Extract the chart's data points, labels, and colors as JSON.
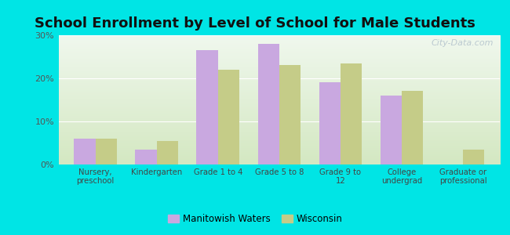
{
  "title": "School Enrollment by Level of School for Male Students",
  "categories": [
    "Nursery,\npreschool",
    "Kindergarten",
    "Grade 1 to 4",
    "Grade 5 to 8",
    "Grade 9 to\n12",
    "College\nundergrad",
    "Graduate or\nprofessional"
  ],
  "manitowish_values": [
    6.0,
    3.5,
    26.5,
    28.0,
    19.0,
    16.0,
    0.0
  ],
  "wisconsin_values": [
    6.0,
    5.5,
    22.0,
    23.0,
    23.5,
    17.0,
    3.5
  ],
  "manitowish_color": "#c9a8e0",
  "wisconsin_color": "#c5cc88",
  "background_outer": "#00e5e5",
  "background_inner_bottom": "#d4e8c2",
  "background_inner_top": "#f0f8ee",
  "ylim": [
    0,
    30
  ],
  "yticks": [
    0,
    10,
    20,
    30
  ],
  "ytick_labels": [
    "0%",
    "10%",
    "20%",
    "30%"
  ],
  "title_fontsize": 13,
  "legend_label_1": "Manitowish Waters",
  "legend_label_2": "Wisconsin",
  "bar_width": 0.35,
  "watermark": "City-Data.com"
}
